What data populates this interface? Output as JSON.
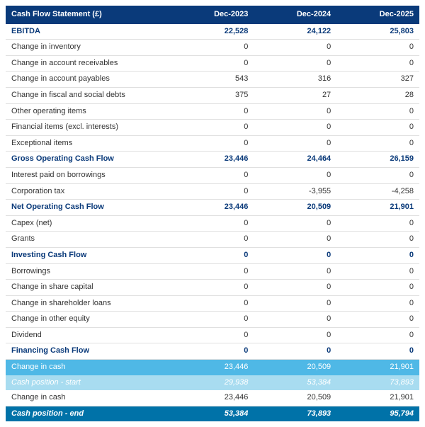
{
  "table": {
    "title": "Cash Flow Statement (£)",
    "periods": [
      "Dec-2023",
      "Dec-2024",
      "Dec-2025"
    ],
    "colors": {
      "header_bg": "#0a3a7a",
      "header_fg": "#ffffff",
      "sub_bold_fg": "#0a3a7a",
      "normal_fg": "#333333",
      "med_bg": "#4fb8e6",
      "light_bg": "#a8dcf0",
      "dark_bg": "#0072a8",
      "border": "#e0e0e0"
    },
    "rows": [
      {
        "style": "sub-bold",
        "label": "EBITDA",
        "vals": [
          "22,528",
          "24,122",
          "25,803"
        ]
      },
      {
        "style": "normal",
        "label": "Change in inventory",
        "vals": [
          "0",
          "0",
          "0"
        ]
      },
      {
        "style": "normal",
        "label": "Change in account receivables",
        "vals": [
          "0",
          "0",
          "0"
        ]
      },
      {
        "style": "normal",
        "label": "Change in account payables",
        "vals": [
          "543",
          "316",
          "327"
        ]
      },
      {
        "style": "normal",
        "label": "Change in fiscal and social debts",
        "vals": [
          "375",
          "27",
          "28"
        ]
      },
      {
        "style": "normal",
        "label": "Other operating items",
        "vals": [
          "0",
          "0",
          "0"
        ]
      },
      {
        "style": "normal",
        "label": "Financial items (excl. interests)",
        "vals": [
          "0",
          "0",
          "0"
        ]
      },
      {
        "style": "normal",
        "label": "Exceptional items",
        "vals": [
          "0",
          "0",
          "0"
        ]
      },
      {
        "style": "sub-bold",
        "label": "Gross Operating Cash Flow",
        "vals": [
          "23,446",
          "24,464",
          "26,159"
        ]
      },
      {
        "style": "normal",
        "label": "Interest paid on borrowings",
        "vals": [
          "0",
          "0",
          "0"
        ]
      },
      {
        "style": "normal",
        "label": "Corporation tax",
        "vals": [
          "0",
          "-3,955",
          "-4,258"
        ]
      },
      {
        "style": "sub-bold",
        "label": "Net Operating Cash Flow",
        "vals": [
          "23,446",
          "20,509",
          "21,901"
        ]
      },
      {
        "style": "normal",
        "label": "Capex (net)",
        "vals": [
          "0",
          "0",
          "0"
        ]
      },
      {
        "style": "normal",
        "label": "Grants",
        "vals": [
          "0",
          "0",
          "0"
        ]
      },
      {
        "style": "sub-bold",
        "label": "Investing Cash Flow",
        "vals": [
          "0",
          "0",
          "0"
        ]
      },
      {
        "style": "normal",
        "label": "Borrowings",
        "vals": [
          "0",
          "0",
          "0"
        ]
      },
      {
        "style": "normal",
        "label": "Change in share capital",
        "vals": [
          "0",
          "0",
          "0"
        ]
      },
      {
        "style": "normal",
        "label": "Change in shareholder loans",
        "vals": [
          "0",
          "0",
          "0"
        ]
      },
      {
        "style": "normal",
        "label": "Change in other equity",
        "vals": [
          "0",
          "0",
          "0"
        ]
      },
      {
        "style": "normal",
        "label": "Dividend",
        "vals": [
          "0",
          "0",
          "0"
        ]
      },
      {
        "style": "sub-bold",
        "label": "Financing Cash Flow",
        "vals": [
          "0",
          "0",
          "0"
        ]
      },
      {
        "style": "med-row",
        "label": "Change in cash",
        "vals": [
          "23,446",
          "20,509",
          "21,901"
        ]
      },
      {
        "style": "light-row",
        "label": "Cash position - start",
        "vals": [
          "29,938",
          "53,384",
          "73,893"
        ]
      },
      {
        "style": "normal-alt",
        "label": "Change in cash",
        "vals": [
          "23,446",
          "20,509",
          "21,901"
        ]
      },
      {
        "style": "dark-row",
        "label": "Cash position - end",
        "vals": [
          "53,384",
          "73,893",
          "95,794"
        ]
      }
    ]
  }
}
